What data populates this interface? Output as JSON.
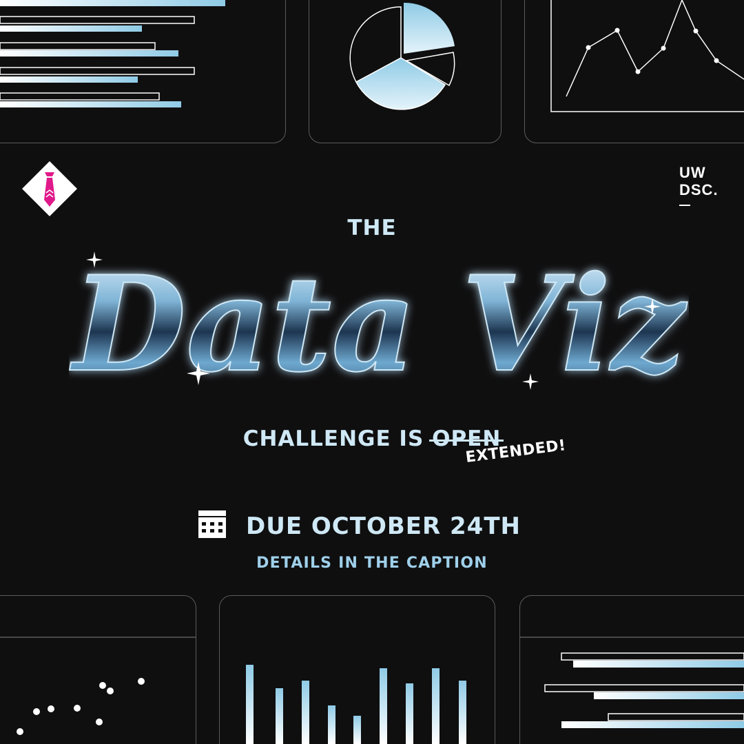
{
  "poster": {
    "kicker": "THE",
    "title": "Data Viz",
    "challenge_prefix": "CHALLENGE IS ",
    "challenge_struck": "OPEN",
    "extended": "EXTENDED!",
    "due": "DUE OCTOBER 24TH",
    "details": "DETAILS IN THE CAPTION"
  },
  "logos": {
    "org_line1": "UW",
    "org_line2": "DSC.",
    "brand_icon": "tie-icon"
  },
  "icons": {
    "calendar": "calendar-icon"
  },
  "colors": {
    "background": "#0f0f10",
    "accent_blue": "#9fd0ea",
    "text_light": "#cfe8f5",
    "brand_pink": "#e0198a"
  }
}
